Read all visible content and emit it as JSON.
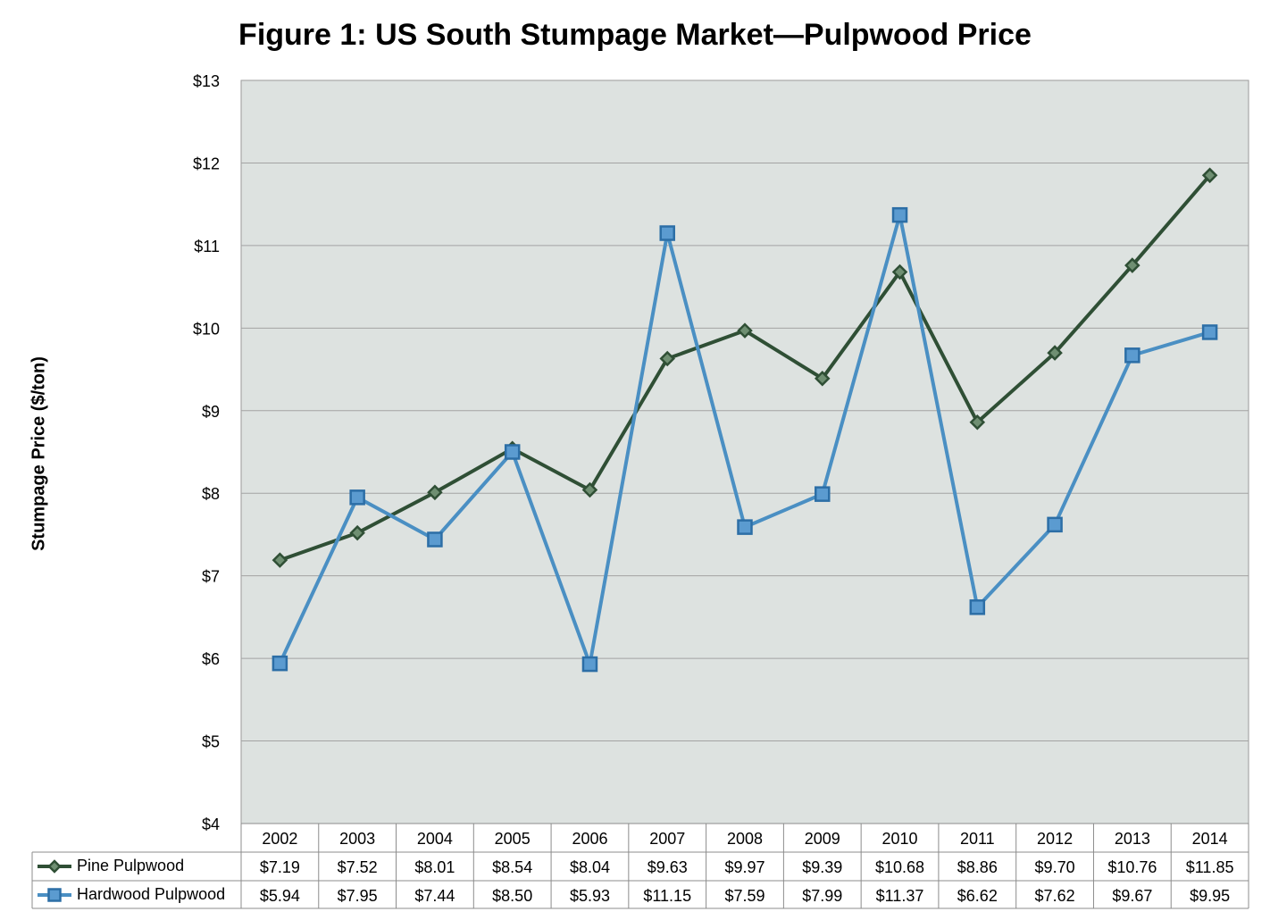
{
  "chart_data": {
    "type": "line",
    "title": "Figure 1: US South Stumpage Market—Pulpwood Price",
    "ylabel": "Stumpage Price ($/ton)",
    "xlabel": "",
    "ylim": [
      4,
      13
    ],
    "y_ticks": [
      "$4",
      "$5",
      "$6",
      "$7",
      "$8",
      "$9",
      "$10",
      "$11",
      "$12",
      "$13"
    ],
    "categories": [
      "2002",
      "2003",
      "2004",
      "2005",
      "2006",
      "2007",
      "2008",
      "2009",
      "2010",
      "2011",
      "2012",
      "2013",
      "2014"
    ],
    "grid": true,
    "legend": "data-table",
    "series": [
      {
        "name": "Pine Pulpwood",
        "color": "#2f4f35",
        "marker": "diamond",
        "values": [
          7.19,
          7.52,
          8.01,
          8.54,
          8.04,
          9.63,
          9.97,
          9.39,
          10.68,
          8.86,
          9.7,
          10.76,
          11.85
        ],
        "labels": [
          "$7.19",
          "$7.52",
          "$8.01",
          "$8.54",
          "$8.04",
          "$9.63",
          "$9.97",
          "$9.39",
          "$10.68",
          "$8.86",
          "$9.70",
          "$10.76",
          "$11.85"
        ]
      },
      {
        "name": "Hardwood Pulpwood",
        "color": "#4a8fc3",
        "marker": "square",
        "values": [
          5.94,
          7.95,
          7.44,
          8.5,
          5.93,
          11.15,
          7.59,
          7.99,
          11.37,
          6.62,
          7.62,
          9.67,
          9.95
        ],
        "labels": [
          "$5.94",
          "$7.95",
          "$7.44",
          "$8.50",
          "$5.93",
          "$11.15",
          "$7.59",
          "$7.99",
          "$11.37",
          "$6.62",
          "$7.62",
          "$9.67",
          "$9.95"
        ]
      }
    ],
    "plot_background": "#dde2e0"
  }
}
